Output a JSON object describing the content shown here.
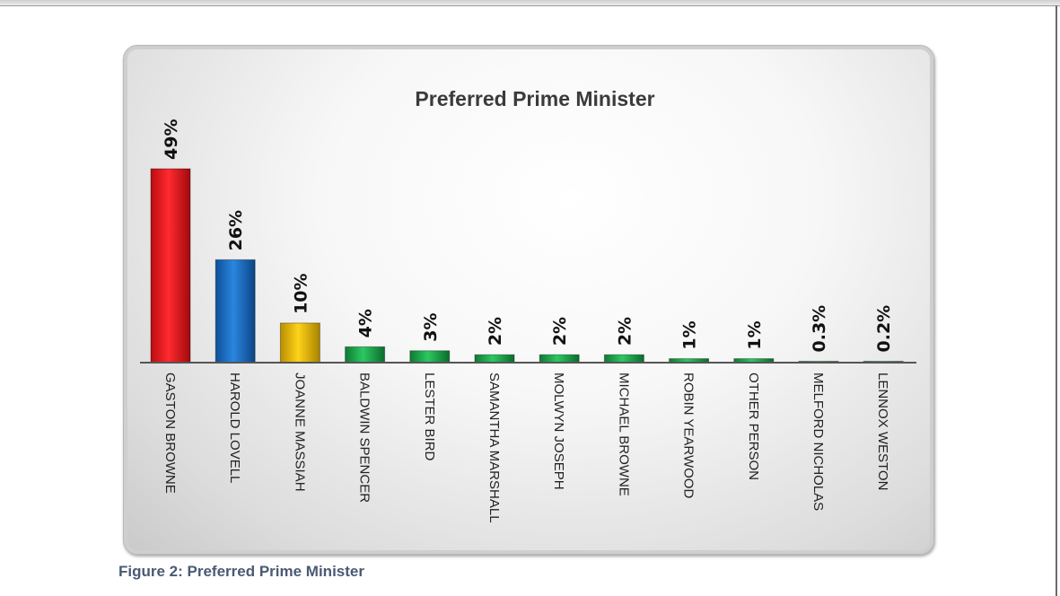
{
  "caption": "Figure 2: Preferred Prime Minister",
  "chart_data": {
    "type": "bar",
    "title": "Preferred Prime Minister",
    "categories": [
      "GASTON BROWNE",
      "HAROLD LOVELL",
      "JOANNE MASSIAH",
      "BALDWIN SPENCER",
      "LESTER BIRD",
      "SAMANTHA MARSHALL",
      "MOLWYN JOSEPH",
      "MICHAEL BROWNE",
      "ROBIN YEARWOOD",
      "OTHER PERSON",
      "MELFORD NICHOLAS",
      "LENNOX WESTON"
    ],
    "values": [
      49,
      26,
      10,
      4,
      3,
      2,
      2,
      2,
      1,
      1,
      0.3,
      0.2
    ],
    "data_labels": [
      "49%",
      "26%",
      "10%",
      "4%",
      "3%",
      "2%",
      "2%",
      "2%",
      "1%",
      "1%",
      "0.3%",
      "0.2%"
    ],
    "colors": [
      "#e8141a",
      "#1a6fc4",
      "#e6b800",
      "#1aa84a",
      "#1aa84a",
      "#1aa84a",
      "#1aa84a",
      "#1aa84a",
      "#1aa84a",
      "#1aa84a",
      "#1aa84a",
      "#1aa84a"
    ],
    "ylim": [
      0,
      49
    ],
    "grid": false,
    "legend": "none",
    "xlabel": "",
    "ylabel": ""
  }
}
